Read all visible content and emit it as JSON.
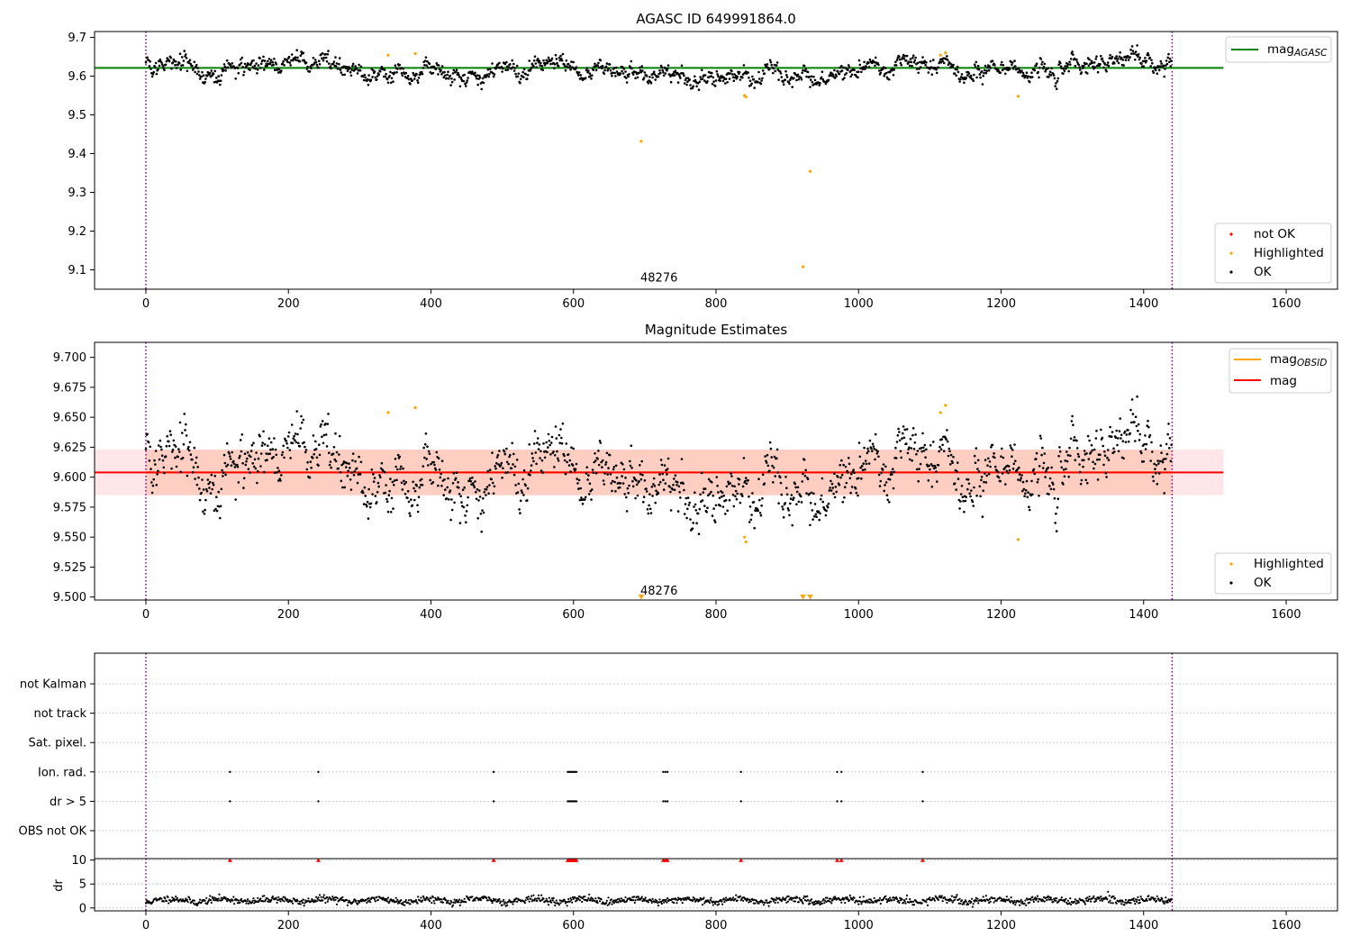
{
  "chart_data": [
    {
      "type": "scatter",
      "title": "AGASC ID 649991864.0",
      "xlim": [
        -72,
        1672
      ],
      "ylim": [
        9.05,
        9.715
      ],
      "xticks": [
        0,
        200,
        400,
        600,
        800,
        1000,
        1200,
        1400,
        1600
      ],
      "yticks": [
        9.1,
        9.2,
        9.3,
        9.4,
        9.5,
        9.6,
        9.7
      ],
      "ytick_labels": [
        "9.1",
        "9.2",
        "9.3",
        "9.4",
        "9.5",
        "9.6",
        "9.7"
      ],
      "vlines": [
        0,
        1440
      ],
      "hline": {
        "name": "mag_AGASC",
        "y": 9.621,
        "x": [
          -72,
          1512
        ],
        "color": "#008000"
      },
      "obsid_label": {
        "text": "48276",
        "x": 720,
        "y": 9.07
      },
      "legend_lines": [
        {
          "label": "mag",
          "sub": "AGASC",
          "color": "#008000"
        }
      ],
      "legend_points": [
        {
          "label": "not OK",
          "color": "#ff0000"
        },
        {
          "label": "Highlighted",
          "color": "#ffa500"
        },
        {
          "label": "OK",
          "color": "#000000"
        }
      ],
      "ok_series": {
        "n": 1440,
        "seed": 7,
        "noise": 0.014
      },
      "highlighted_points": [
        {
          "x": 340,
          "y": 9.654
        },
        {
          "x": 378,
          "y": 9.658
        },
        {
          "x": 695,
          "y": 9.432
        },
        {
          "x": 840,
          "y": 9.55
        },
        {
          "x": 842,
          "y": 9.546
        },
        {
          "x": 922,
          "y": 9.108
        },
        {
          "x": 932,
          "y": 9.354
        },
        {
          "x": 1115,
          "y": 9.654
        },
        {
          "x": 1122,
          "y": 9.66
        },
        {
          "x": 1224,
          "y": 9.548
        }
      ]
    },
    {
      "type": "scatter",
      "title": "Magnitude Estimates",
      "xlim": [
        -72,
        1672
      ],
      "ylim": [
        9.4975,
        9.7125
      ],
      "xticks": [
        0,
        200,
        400,
        600,
        800,
        1000,
        1200,
        1400,
        1600
      ],
      "yticks": [
        9.5,
        9.525,
        9.55,
        9.575,
        9.6,
        9.625,
        9.65,
        9.675,
        9.7
      ],
      "ytick_labels": [
        "9.500",
        "9.525",
        "9.550",
        "9.575",
        "9.600",
        "9.625",
        "9.650",
        "9.675",
        "9.700"
      ],
      "vlines": [
        0,
        1440
      ],
      "band": {
        "y0": 9.585,
        "y1": 9.623,
        "x": [
          -72,
          1512
        ]
      },
      "mean_line": {
        "name": "mag",
        "y": 9.604,
        "color": "#ff0000"
      },
      "obsid_line": {
        "name": "mag_OBSID",
        "color": "#ffa500"
      },
      "obsid_label": {
        "text": "48276",
        "x": 720,
        "y": 9.502
      },
      "legend_lines": [
        {
          "label": "mag",
          "sub": "OBSID",
          "color": "#ffa500"
        },
        {
          "label": "mag",
          "sub": "",
          "color": "#ff0000"
        }
      ],
      "legend_points": [
        {
          "label": "Highlighted",
          "color": "#ffa500"
        },
        {
          "label": "OK",
          "color": "#000000"
        }
      ],
      "out_of_range_markers": [
        {
          "x": 695
        },
        {
          "x": 922
        },
        {
          "x": 932
        }
      ],
      "highlighted_points": [
        {
          "x": 340,
          "y": 9.654
        },
        {
          "x": 378,
          "y": 9.658
        },
        {
          "x": 840,
          "y": 9.55
        },
        {
          "x": 842,
          "y": 9.546
        },
        {
          "x": 1115,
          "y": 9.654
        },
        {
          "x": 1122,
          "y": 9.66
        },
        {
          "x": 1224,
          "y": 9.548
        }
      ]
    },
    {
      "type": "scatter",
      "title": "",
      "xlim": [
        -72,
        1672
      ],
      "xticks": [
        0,
        200,
        400,
        600,
        800,
        1000,
        1200,
        1400,
        1600
      ],
      "vlines": [
        0,
        1440
      ],
      "flag_rows": [
        "not Kalman",
        "not track",
        "Sat. pixel.",
        "Ion. rad.",
        "dr > 5",
        "OBS not OK"
      ],
      "flag_times": [
        118,
        242,
        488,
        592,
        594,
        596,
        598,
        600,
        602,
        604,
        726,
        729,
        732,
        835,
        970,
        976,
        1090
      ],
      "flagged_rows": [
        "Ion. rad.",
        "dr > 5"
      ],
      "dr_panel": {
        "ylabel": "dr",
        "yticks": [
          0,
          5,
          10
        ],
        "ylim": [
          -0.6,
          10.3
        ],
        "flag_value": 10,
        "flag_color": "#ff0000",
        "series_seed": 11
      }
    }
  ]
}
